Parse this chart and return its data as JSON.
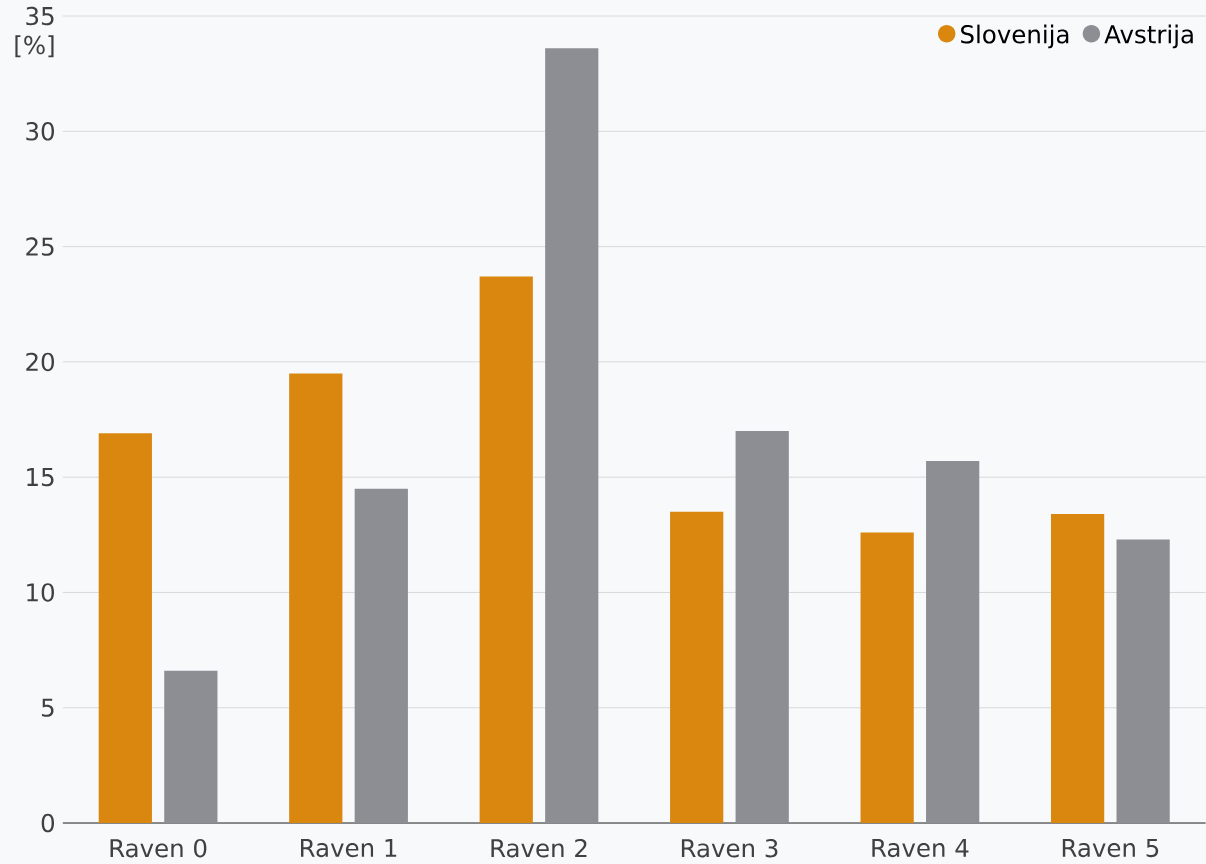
{
  "chart_data": {
    "type": "bar",
    "ylabel": "[%]",
    "categories": [
      "Raven 0",
      "Raven 1",
      "Raven 2",
      "Raven 3",
      "Raven 4",
      "Raven 5"
    ],
    "series": [
      {
        "name": "Slovenija",
        "color": "#d9870f",
        "values": [
          16.9,
          19.5,
          23.7,
          13.5,
          12.6,
          13.4
        ]
      },
      {
        "name": "Avstrija",
        "color": "#8c8e93",
        "values": [
          6.6,
          14.5,
          33.6,
          17.0,
          15.7,
          12.3
        ]
      }
    ],
    "ylim": [
      0,
      35
    ],
    "yticks": [
      0,
      5,
      10,
      15,
      20,
      25,
      30,
      35
    ],
    "grid": "y",
    "legend": "top right"
  }
}
